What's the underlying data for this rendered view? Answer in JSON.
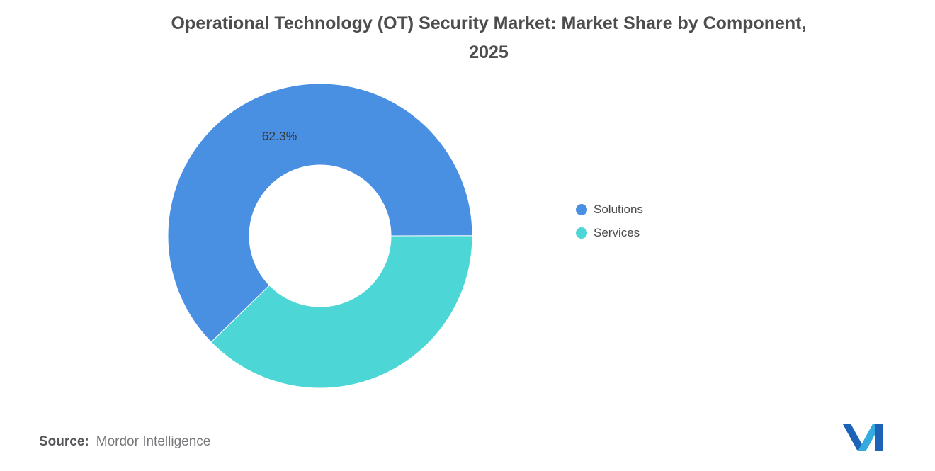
{
  "title_lines": [
    "Operational Technology (OT) Security Market: Market Share by Component,",
    "2025"
  ],
  "chart_data": {
    "type": "pie",
    "subtype": "donut",
    "title": "Operational Technology (OT) Security Market: Market Share by Component, 2025",
    "inner_radius_ratio": 0.465,
    "start_angle_deg": 225.7,
    "legend_position": "right",
    "units": "%",
    "series": [
      {
        "name": "Solutions",
        "value": 62.3,
        "label": "62.3%",
        "color": "#4A90E2"
      },
      {
        "name": "Services",
        "value": 37.7,
        "label": "",
        "color": "#4DD6D6"
      }
    ]
  },
  "footer": {
    "source_label": "Source:",
    "source_value": "Mordor Intelligence"
  },
  "branding": {
    "logo_name": "mordor-intelligence-logo",
    "logo_dark": "#1C63B7",
    "logo_light": "#35AADF"
  }
}
